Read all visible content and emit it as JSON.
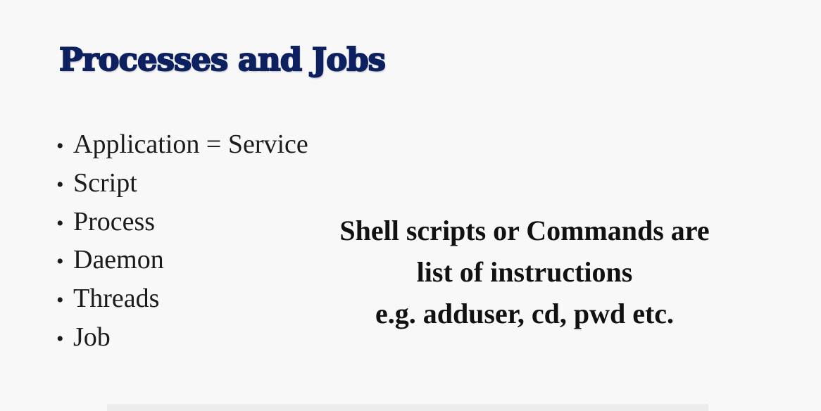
{
  "slide": {
    "title": "Processes and Jobs",
    "bullets": [
      "Application = Service",
      "Script",
      "Process",
      "Daemon",
      "Threads",
      "Job"
    ],
    "bullet_glyph": "•",
    "callout_lines": [
      "Shell scripts or Commands are",
      "list of instructions",
      "e.g. adduser, cd, pwd etc."
    ]
  },
  "colors": {
    "background": "#f8f8f9",
    "title": "#0d2160",
    "text": "#1b1b1b"
  }
}
